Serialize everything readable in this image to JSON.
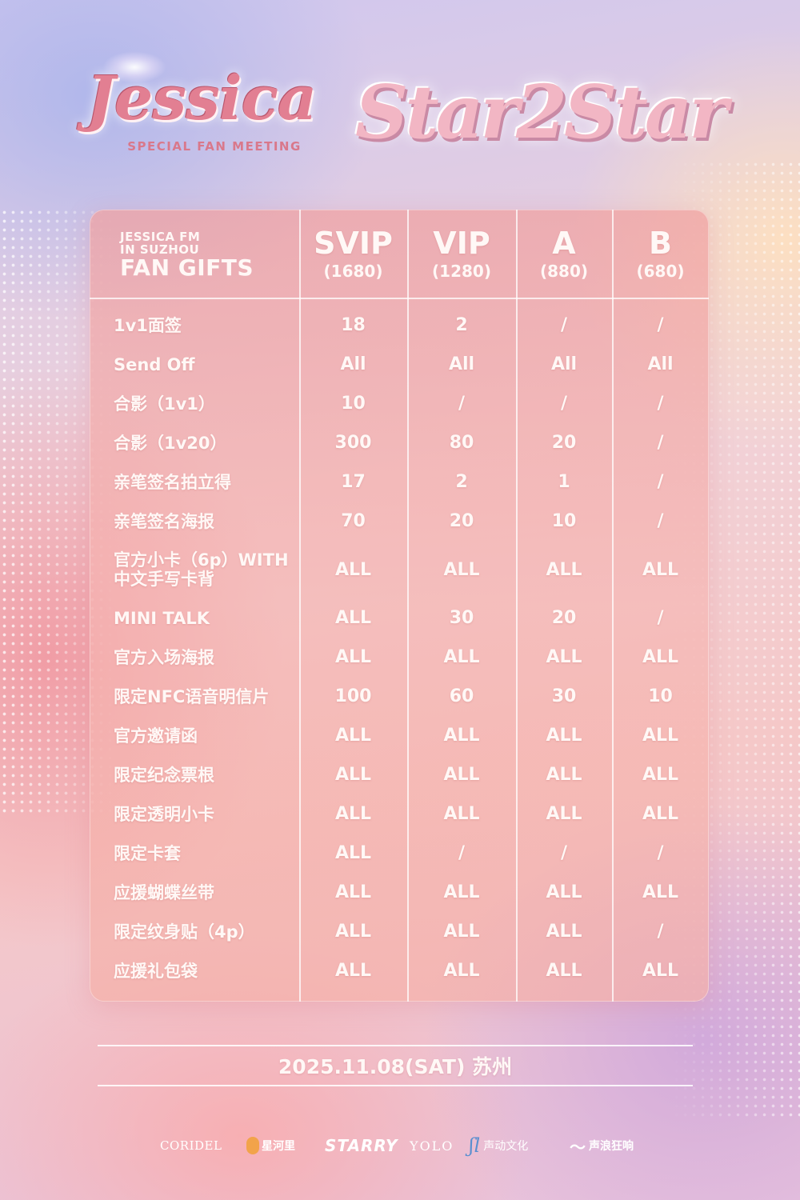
{
  "header": {
    "logo_main": "Jessica",
    "logo_sub": "SPECIAL FAN MEETING",
    "logo_tour": "Star2Star"
  },
  "table": {
    "header_line1": "JESSICA FM",
    "header_line2": "IN SUZHOU",
    "header_title": "FAN GIFTS",
    "tiers": [
      {
        "name": "SVIP",
        "price": "(1680)"
      },
      {
        "name": "VIP",
        "price": "(1280)"
      },
      {
        "name": "A",
        "price": "(880)"
      },
      {
        "name": "B",
        "price": "(680)"
      }
    ],
    "rows": [
      {
        "label": "1v1面签",
        "values": [
          "18",
          "2",
          "/",
          "/"
        ]
      },
      {
        "label": "Send Off",
        "values": [
          "All",
          "All",
          "All",
          "All"
        ]
      },
      {
        "label": "合影（1v1）",
        "values": [
          "10",
          "/",
          "/",
          "/"
        ]
      },
      {
        "label": "合影（1v20）",
        "values": [
          "300",
          "80",
          "20",
          "/"
        ]
      },
      {
        "label": "亲笔签名拍立得",
        "values": [
          "17",
          "2",
          "1",
          "/"
        ]
      },
      {
        "label": "亲笔签名海报",
        "values": [
          "70",
          "20",
          "10",
          "/"
        ]
      },
      {
        "label": "官方小卡（6p）WITH中文手写卡背",
        "values": [
          "ALL",
          "ALL",
          "ALL",
          "ALL"
        ]
      },
      {
        "label": "MINI TALK",
        "values": [
          "ALL",
          "30",
          "20",
          "/"
        ]
      },
      {
        "label": "官方入场海报",
        "values": [
          "ALL",
          "ALL",
          "ALL",
          "ALL"
        ]
      },
      {
        "label": "限定NFC语音明信片",
        "values": [
          "100",
          "60",
          "30",
          "10"
        ]
      },
      {
        "label": "官方邀请函",
        "values": [
          "ALL",
          "ALL",
          "ALL",
          "ALL"
        ]
      },
      {
        "label": "限定纪念票根",
        "values": [
          "ALL",
          "ALL",
          "ALL",
          "ALL"
        ]
      },
      {
        "label": "限定透明小卡",
        "values": [
          "ALL",
          "ALL",
          "ALL",
          "ALL"
        ]
      },
      {
        "label": "限定卡套",
        "values": [
          "ALL",
          "/",
          "/",
          "/"
        ]
      },
      {
        "label": "应援蝴蝶丝带",
        "values": [
          "ALL",
          "ALL",
          "ALL",
          "ALL"
        ]
      },
      {
        "label": "限定纹身贴（4p）",
        "values": [
          "ALL",
          "ALL",
          "ALL",
          "/"
        ]
      },
      {
        "label": "应援礼包袋",
        "values": [
          "ALL",
          "ALL",
          "ALL",
          "ALL"
        ]
      }
    ]
  },
  "footer": {
    "date": "2025.11.08(SAT) 苏州",
    "sponsors": [
      "CORIDEL",
      "星河里",
      "STARRY",
      "YOLO",
      "声动文化",
      "声浪狂响"
    ]
  },
  "colors": {
    "text": "#fff8f6",
    "logo_pink": "#e27f92",
    "card": "#f0a0a0"
  }
}
